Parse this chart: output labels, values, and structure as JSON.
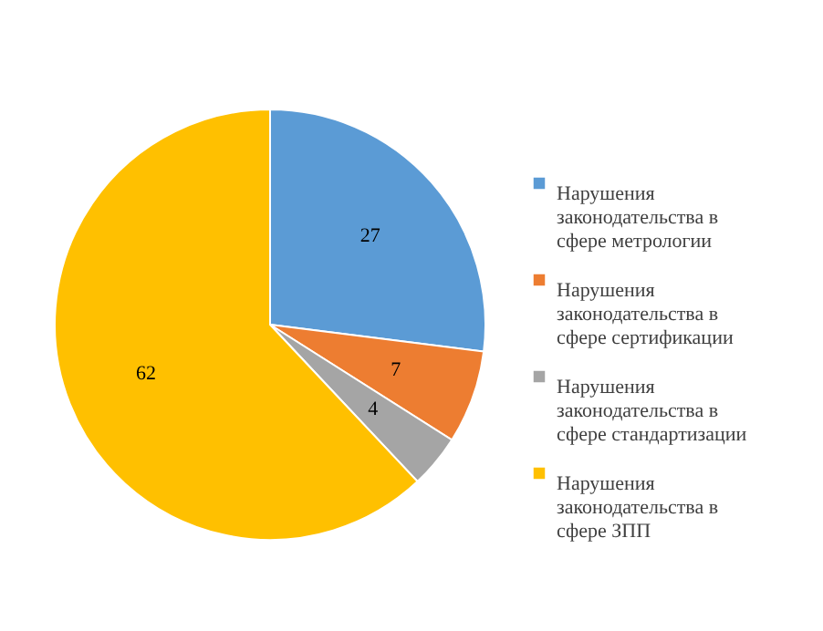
{
  "chart_data": {
    "type": "pie",
    "categories": [
      "Нарушения законодательства в сфере метрологии",
      "Нарушения законодательства в сфере сертификации",
      "Нарушения законодательства в сфере стандартизации",
      "Нарушения законодательства в сфере ЗПП"
    ],
    "values": [
      27,
      7,
      4,
      62
    ],
    "colors": [
      "#5b9bd5",
      "#ed7d31",
      "#a5a5a5",
      "#ffc000"
    ],
    "data_labels": true,
    "legend": "right"
  }
}
